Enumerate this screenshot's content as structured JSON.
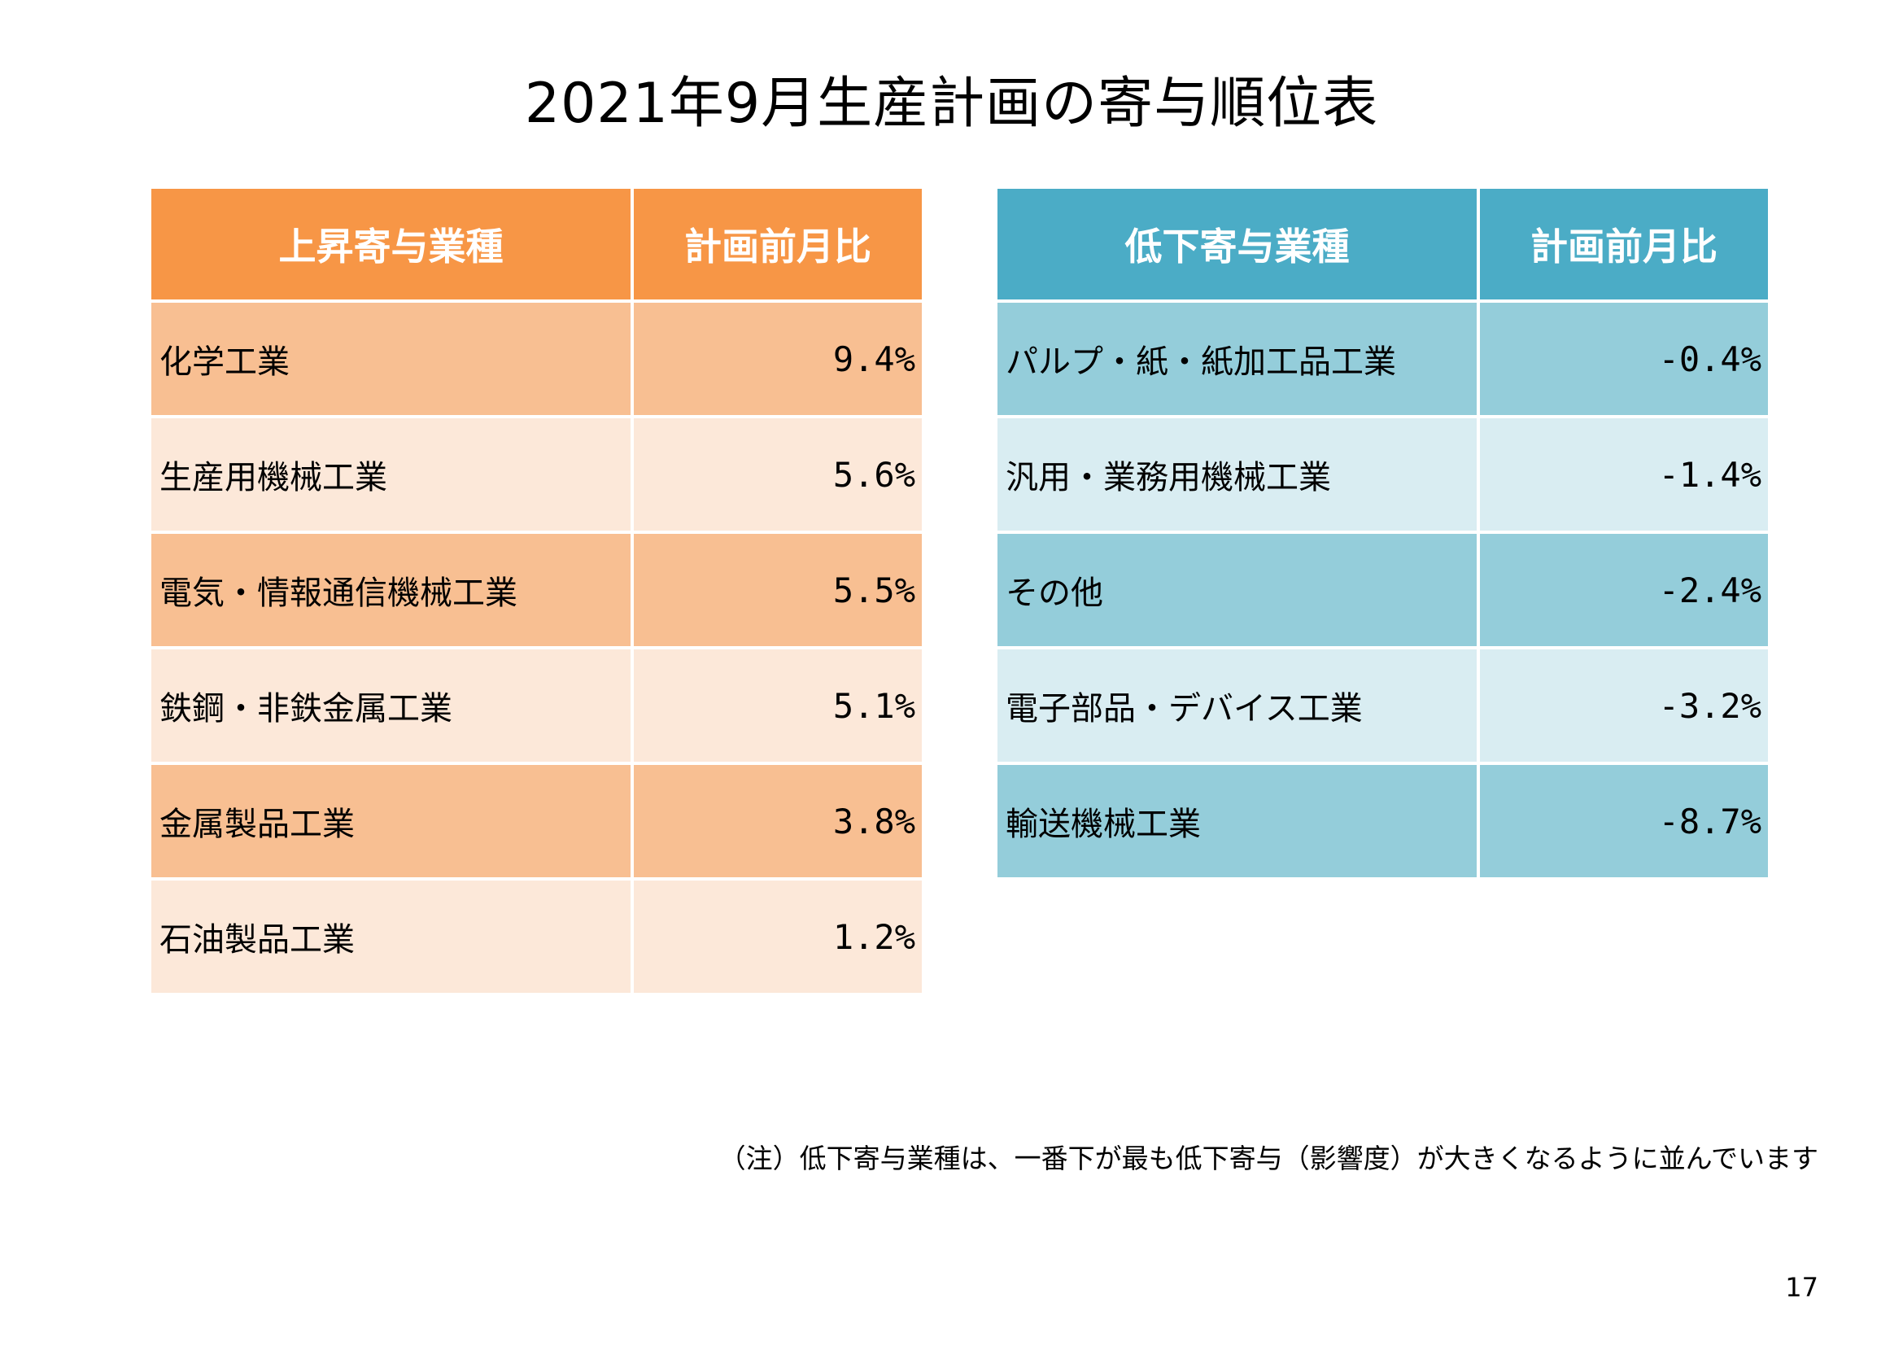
{
  "title": "2021年9月生産計画の寄与順位表",
  "increase_table": {
    "header_category": "上昇寄与業種",
    "header_value": "計画前月比",
    "header_color": "#f79646",
    "rows": [
      {
        "category": "化学工業",
        "value": "9.4%"
      },
      {
        "category": "生産用機械工業",
        "value": "5.6%"
      },
      {
        "category": "電気・情報通信機械工業",
        "value": "5.5%"
      },
      {
        "category": "鉄鋼・非鉄金属工業",
        "value": "5.1%"
      },
      {
        "category": "金属製品工業",
        "value": "3.8%"
      },
      {
        "category": "石油製品工業",
        "value": "1.2%"
      }
    ]
  },
  "decrease_table": {
    "header_category": "低下寄与業種",
    "header_value": "計画前月比",
    "header_color": "#4bacc6",
    "rows": [
      {
        "category": "パルプ・紙・紙加工品工業",
        "value": "-0.4%"
      },
      {
        "category": "汎用・業務用機械工業",
        "value": "-1.4%"
      },
      {
        "category": "その他",
        "value": "-2.4%"
      },
      {
        "category": "電子部品・デバイス工業",
        "value": "-3.2%"
      },
      {
        "category": "輸送機械工業",
        "value": "-8.7%"
      }
    ]
  },
  "footnote": "（注）低下寄与業種は、一番下が最も低下寄与（影響度）が大きくなるように並んでいます",
  "page_number": "17"
}
